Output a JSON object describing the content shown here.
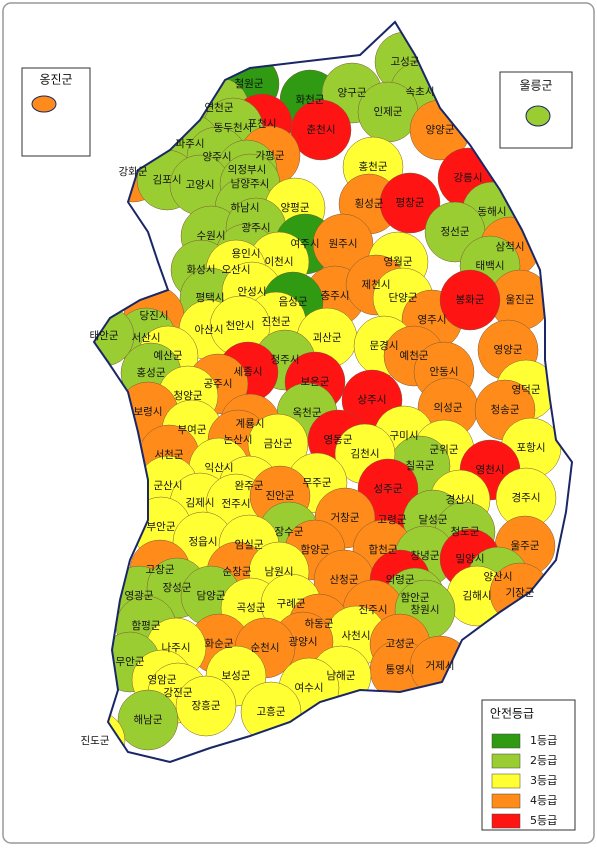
{
  "insets": [
    {
      "name": "옹진군",
      "grade": 4
    },
    {
      "name": "울릉군",
      "grade": 2
    }
  ],
  "regions": [
    {
      "name": "고성군",
      "grade": 2
    },
    {
      "name": "속초시",
      "grade": 2
    },
    {
      "name": "철원군",
      "grade": 1
    },
    {
      "name": "화천군",
      "grade": 1
    },
    {
      "name": "양구군",
      "grade": 2
    },
    {
      "name": "인제군",
      "grade": 2
    },
    {
      "name": "연천군",
      "grade": 2
    },
    {
      "name": "포천시",
      "grade": 5
    },
    {
      "name": "동두천시",
      "grade": 2
    },
    {
      "name": "춘천시",
      "grade": 5
    },
    {
      "name": "양양군",
      "grade": 4
    },
    {
      "name": "파주시",
      "grade": 2
    },
    {
      "name": "양주시",
      "grade": 2
    },
    {
      "name": "가평군",
      "grade": 4
    },
    {
      "name": "의정부시",
      "grade": 2
    },
    {
      "name": "홍천군",
      "grade": 3
    },
    {
      "name": "강릉시",
      "grade": 5
    },
    {
      "name": "강화군",
      "grade": 4
    },
    {
      "name": "김포시",
      "grade": 2
    },
    {
      "name": "고양시",
      "grade": 2
    },
    {
      "name": "남양주시",
      "grade": 2
    },
    {
      "name": "횡성군",
      "grade": 4
    },
    {
      "name": "평창군",
      "grade": 5
    },
    {
      "name": "동해시",
      "grade": 2
    },
    {
      "name": "하남시",
      "grade": 2
    },
    {
      "name": "양평군",
      "grade": 3
    },
    {
      "name": "정선군",
      "grade": 2
    },
    {
      "name": "삼척시",
      "grade": 4
    },
    {
      "name": "수원시",
      "grade": 2
    },
    {
      "name": "광주시",
      "grade": 2
    },
    {
      "name": "여주시",
      "grade": 1
    },
    {
      "name": "원주시",
      "grade": 4
    },
    {
      "name": "용인시",
      "grade": 2
    },
    {
      "name": "태백시",
      "grade": 2
    },
    {
      "name": "이천시",
      "grade": 3
    },
    {
      "name": "영월군",
      "grade": 3
    },
    {
      "name": "화성시",
      "grade": 2
    },
    {
      "name": "오산시",
      "grade": 3
    },
    {
      "name": "평택시",
      "grade": 2
    },
    {
      "name": "안성시",
      "grade": 3
    },
    {
      "name": "충주시",
      "grade": 4
    },
    {
      "name": "제천시",
      "grade": 4
    },
    {
      "name": "단양군",
      "grade": 3
    },
    {
      "name": "영주시",
      "grade": 4
    },
    {
      "name": "울진군",
      "grade": 4
    },
    {
      "name": "봉화군",
      "grade": 5
    },
    {
      "name": "당진시",
      "grade": 4
    },
    {
      "name": "음성군",
      "grade": 1
    },
    {
      "name": "진천군",
      "grade": 3
    },
    {
      "name": "괴산군",
      "grade": 3
    },
    {
      "name": "서산시",
      "grade": 2
    },
    {
      "name": "태안군",
      "grade": 2
    },
    {
      "name": "아산시",
      "grade": 3
    },
    {
      "name": "천안시",
      "grade": 3
    },
    {
      "name": "청주시",
      "grade": 2
    },
    {
      "name": "문경시",
      "grade": 3
    },
    {
      "name": "예천군",
      "grade": 4
    },
    {
      "name": "영양군",
      "grade": 4
    },
    {
      "name": "예산군",
      "grade": 3
    },
    {
      "name": "세종시",
      "grade": 5
    },
    {
      "name": "보은군",
      "grade": 5
    },
    {
      "name": "안동시",
      "grade": 4
    },
    {
      "name": "영덕군",
      "grade": 3
    },
    {
      "name": "홍성군",
      "grade": 2
    },
    {
      "name": "공주시",
      "grade": 4
    },
    {
      "name": "상주시",
      "grade": 5
    },
    {
      "name": "청양군",
      "grade": 3
    },
    {
      "name": "보령시",
      "grade": 4
    },
    {
      "name": "의성군",
      "grade": 4
    },
    {
      "name": "청송군",
      "grade": 4
    },
    {
      "name": "옥천군",
      "grade": 2
    },
    {
      "name": "계룡시",
      "grade": 4
    },
    {
      "name": "부여군",
      "grade": 3
    },
    {
      "name": "논산시",
      "grade": 4
    },
    {
      "name": "영동군",
      "grade": 5
    },
    {
      "name": "구미시",
      "grade": 3
    },
    {
      "name": "포항시",
      "grade": 3
    },
    {
      "name": "금산군",
      "grade": 3
    },
    {
      "name": "서천군",
      "grade": 4
    },
    {
      "name": "군위군",
      "grade": 3
    },
    {
      "name": "익산시",
      "grade": 3
    },
    {
      "name": "영천시",
      "grade": 5
    },
    {
      "name": "칠곡군",
      "grade": 2
    },
    {
      "name": "김천시",
      "grade": 3
    },
    {
      "name": "군산시",
      "grade": 3
    },
    {
      "name": "완주군",
      "grade": 3
    },
    {
      "name": "무주군",
      "grade": 3
    },
    {
      "name": "경산시",
      "grade": 3
    },
    {
      "name": "경주시",
      "grade": 3
    },
    {
      "name": "김제시",
      "grade": 3
    },
    {
      "name": "전주시",
      "grade": 3
    },
    {
      "name": "진안군",
      "grade": 4
    },
    {
      "name": "성주군",
      "grade": 5
    },
    {
      "name": "고령군",
      "grade": 5
    },
    {
      "name": "달성군",
      "grade": 2
    },
    {
      "name": "청도군",
      "grade": 2
    },
    {
      "name": "부안군",
      "grade": 3
    },
    {
      "name": "장수군",
      "grade": 2
    },
    {
      "name": "거창군",
      "grade": 4
    },
    {
      "name": "합천군",
      "grade": 4
    },
    {
      "name": "울주군",
      "grade": 4
    },
    {
      "name": "창녕군",
      "grade": 2
    },
    {
      "name": "정읍시",
      "grade": 3
    },
    {
      "name": "임실군",
      "grade": 3
    },
    {
      "name": "함양군",
      "grade": 4
    },
    {
      "name": "밀양시",
      "grade": 5
    },
    {
      "name": "고창군",
      "grade": 4
    },
    {
      "name": "순창군",
      "grade": 4
    },
    {
      "name": "남원시",
      "grade": 3
    },
    {
      "name": "산청군",
      "grade": 4
    },
    {
      "name": "의령군",
      "grade": 5
    },
    {
      "name": "양산시",
      "grade": 2
    },
    {
      "name": "영광군",
      "grade": 2
    },
    {
      "name": "장성군",
      "grade": 2
    },
    {
      "name": "담양군",
      "grade": 2
    },
    {
      "name": "함안군",
      "grade": 2
    },
    {
      "name": "김해시",
      "grade": 3
    },
    {
      "name": "기장군",
      "grade": 4
    },
    {
      "name": "곡성군",
      "grade": 3
    },
    {
      "name": "구례군",
      "grade": 3
    },
    {
      "name": "진주시",
      "grade": 4
    },
    {
      "name": "창원시",
      "grade": 2
    },
    {
      "name": "함평군",
      "grade": 2
    },
    {
      "name": "하동군",
      "grade": 4
    },
    {
      "name": "사천시",
      "grade": 3
    },
    {
      "name": "고성군",
      "grade": 4
    },
    {
      "name": "광양시",
      "grade": 4
    },
    {
      "name": "화순군",
      "grade": 4
    },
    {
      "name": "순천시",
      "grade": 4
    },
    {
      "name": "나주시",
      "grade": 3
    },
    {
      "name": "통영시",
      "grade": 4
    },
    {
      "name": "거제시",
      "grade": 4
    },
    {
      "name": "무안군",
      "grade": 2
    },
    {
      "name": "남해군",
      "grade": 3
    },
    {
      "name": "여수시",
      "grade": 3
    },
    {
      "name": "보성군",
      "grade": 3
    },
    {
      "name": "영암군",
      "grade": 3
    },
    {
      "name": "강진군",
      "grade": 3
    },
    {
      "name": "장흥군",
      "grade": 3
    },
    {
      "name": "고흥군",
      "grade": 3
    },
    {
      "name": "해남군",
      "grade": 2
    },
    {
      "name": "진도군",
      "grade": 3
    }
  ],
  "legend": {
    "title": "안전등급",
    "items": [
      {
        "label": "1등급",
        "grade": 1,
        "color": "#2f9a12"
      },
      {
        "label": "2등급",
        "grade": 2,
        "color": "#9acd32"
      },
      {
        "label": "3등급",
        "grade": 3,
        "color": "#ffff33"
      },
      {
        "label": "4등급",
        "grade": 4,
        "color": "#ff8c1a"
      },
      {
        "label": "5등급",
        "grade": 5,
        "color": "#ff1414"
      }
    ]
  }
}
